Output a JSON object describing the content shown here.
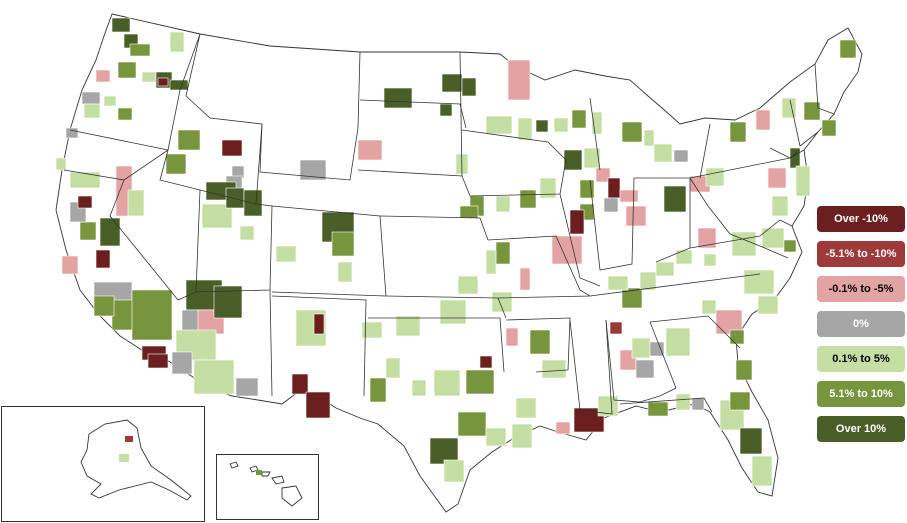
{
  "legend": [
    {
      "label": "Over -10%",
      "color": "#6b1f1f",
      "text_color": "#ffffff"
    },
    {
      "label": "-5.1% to -10%",
      "color": "#9e3a3a",
      "text_color": "#ffffff"
    },
    {
      "label": "-0.1% to -5%",
      "color": "#e3a3a3",
      "text_color": "#000000"
    },
    {
      "label": "0%",
      "color": "#a6a6a6",
      "text_color": "#ffffff"
    },
    {
      "label": "0.1% to 5%",
      "color": "#c5dea3",
      "text_color": "#000000"
    },
    {
      "label": "5.1% to 10%",
      "color": "#76953c",
      "text_color": "#ffffff"
    },
    {
      "label": "Over 10%",
      "color": "#4a5f28",
      "text_color": "#ffffff"
    }
  ]
}
